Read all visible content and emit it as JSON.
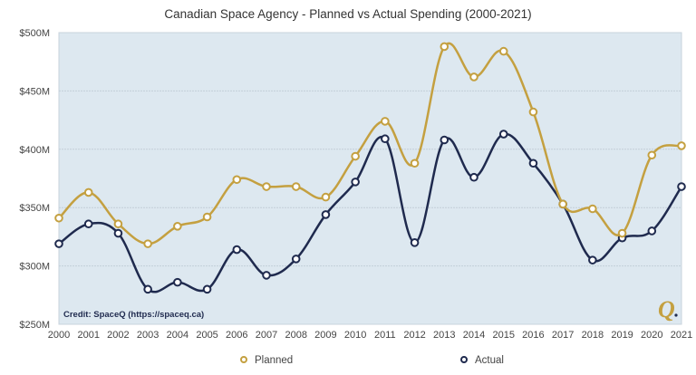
{
  "chart_data": {
    "type": "line",
    "title": "Canadian Space Agency - Planned vs Actual Spending (2000-2021)",
    "xlabel": "",
    "ylabel": "",
    "ylim": [
      250,
      500
    ],
    "y_ticks": [
      "$250M",
      "$300M",
      "$350M",
      "$400M",
      "$450M",
      "$500M"
    ],
    "y_tick_values": [
      250,
      300,
      350,
      400,
      450,
      500
    ],
    "grid": true,
    "legend": "bottom",
    "categories": [
      "2000",
      "2001",
      "2002",
      "2003",
      "2004",
      "2005",
      "2006",
      "2007",
      "2008",
      "2009",
      "2010",
      "2011",
      "2012",
      "2013",
      "2014",
      "2015",
      "2016",
      "2017",
      "2018",
      "2019",
      "2020",
      "2021"
    ],
    "series": [
      {
        "name": "Planned",
        "color": "#c4a040",
        "values": [
          341,
          363,
          336,
          319,
          334,
          342,
          374,
          368,
          368,
          359,
          394,
          424,
          388,
          488,
          462,
          484,
          432,
          353,
          349,
          328,
          395,
          403
        ]
      },
      {
        "name": "Actual",
        "color": "#1f2a4e",
        "values": [
          319,
          336,
          328,
          280,
          286,
          280,
          314,
          292,
          306,
          344,
          372,
          409,
          320,
          408,
          376,
          413,
          388,
          353,
          305,
          324,
          330,
          368
        ]
      }
    ],
    "annotation": "Credit: SpaceQ (https://spaceq.ca)",
    "plot_background": "#dde8f0"
  }
}
